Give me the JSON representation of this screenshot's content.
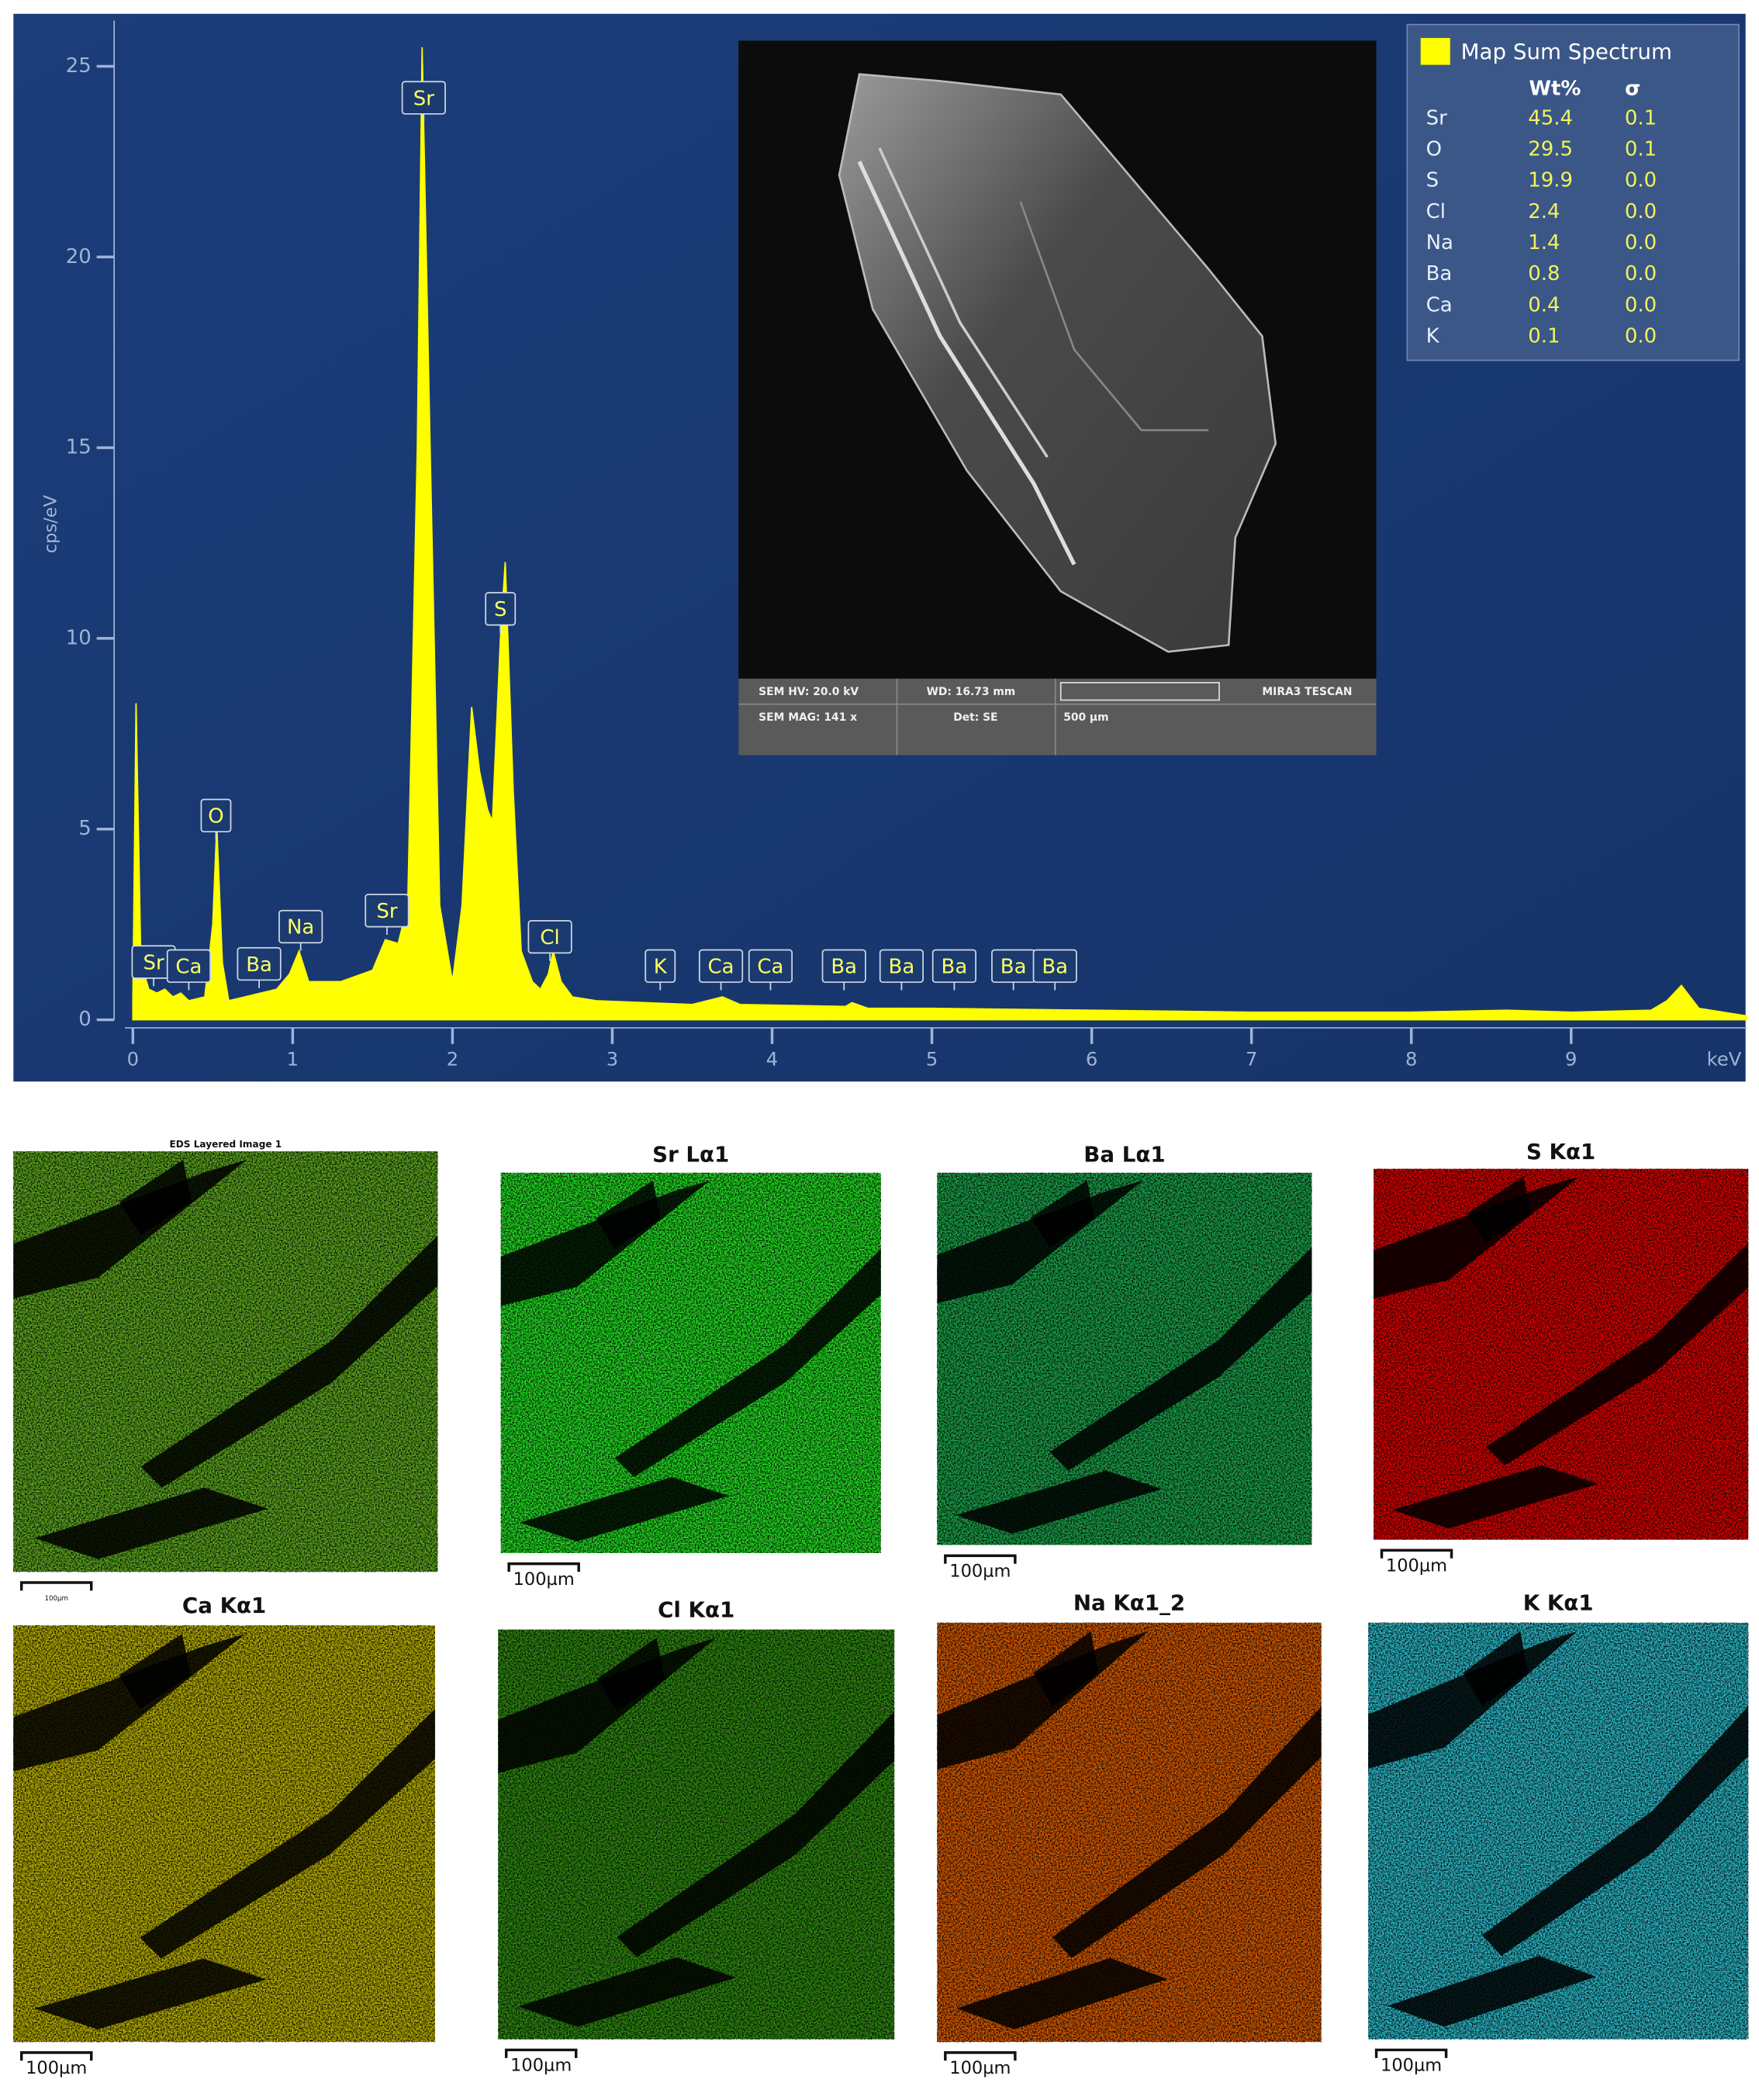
{
  "chart_data": {
    "type": "area",
    "x": [
      0.0,
      0.02,
      0.05,
      0.1,
      0.15,
      0.2,
      0.25,
      0.3,
      0.35,
      0.45,
      0.5,
      0.525,
      0.56,
      0.6,
      0.7,
      0.8,
      0.9,
      0.98,
      1.04,
      1.1,
      1.3,
      1.5,
      1.58,
      1.66,
      1.72,
      1.78,
      1.81,
      1.86,
      1.92,
      2.0,
      2.06,
      2.12,
      2.17,
      2.22,
      2.25,
      2.3,
      2.33,
      2.38,
      2.43,
      2.5,
      2.55,
      2.6,
      2.63,
      2.68,
      2.75,
      2.9,
      3.5,
      3.69,
      3.8,
      4.46,
      4.5,
      4.6,
      5,
      6,
      7,
      8,
      8.6,
      9,
      9.5,
      9.6,
      9.69,
      9.8,
      10.1
    ],
    "series": [
      {
        "name": "Map Sum Spectrum",
        "color": "#ffff00",
        "values": [
          0.5,
          8.3,
          1.5,
          0.8,
          0.7,
          0.8,
          0.6,
          0.7,
          0.5,
          0.6,
          2.5,
          5.1,
          1.5,
          0.5,
          0.6,
          0.7,
          0.8,
          1.2,
          1.8,
          1.0,
          1.0,
          1.3,
          2.1,
          2.0,
          3,
          15,
          25.5,
          15,
          3,
          1.0,
          3,
          8.2,
          6.5,
          5.5,
          5.2,
          10,
          12,
          6,
          1.8,
          1.0,
          0.8,
          1.2,
          1.8,
          1.0,
          0.6,
          0.5,
          0.4,
          0.6,
          0.4,
          0.35,
          0.45,
          0.3,
          0.3,
          0.25,
          0.2,
          0.2,
          0.25,
          0.2,
          0.25,
          0.5,
          0.9,
          0.3,
          0.1
        ]
      }
    ],
    "xlim": [
      -0.05,
      10.1
    ],
    "xticks": [
      0,
      1,
      2,
      3,
      4,
      5,
      6,
      7,
      8,
      9
    ],
    "xlabel": "keV",
    "ylim": [
      0,
      26.2
    ],
    "yticks": [
      0,
      5,
      10,
      15,
      20,
      25
    ],
    "ylabel": "cps/eV",
    "peak_labels": [
      {
        "label": "Sr",
        "x": 0.13
      },
      {
        "label": "Ca",
        "x": 0.35
      },
      {
        "label": "O",
        "x": 0.52
      },
      {
        "label": "Ba",
        "x": 0.79
      },
      {
        "label": "Na",
        "x": 1.05
      },
      {
        "label": "Sr",
        "x": 1.59
      },
      {
        "label": "Sr",
        "x": 1.82
      },
      {
        "label": "S",
        "x": 2.3
      },
      {
        "label": "Cl",
        "x": 2.61
      },
      {
        "label": "K",
        "x": 3.3
      },
      {
        "label": "Ca",
        "x": 3.68
      },
      {
        "label": "Ca",
        "x": 3.99
      },
      {
        "label": "Ba",
        "x": 4.45
      },
      {
        "label": "Ba",
        "x": 4.81
      },
      {
        "label": "Ba",
        "x": 5.14
      },
      {
        "label": "Ba",
        "x": 5.51
      },
      {
        "label": "Ba",
        "x": 5.77
      }
    ]
  },
  "table": {
    "header": [
      "Wt%",
      "σ"
    ],
    "rows": [
      [
        "Sr",
        "45.4",
        "0.1"
      ],
      [
        "O",
        "29.5",
        "0.1"
      ],
      [
        "S",
        "19.9",
        "0.0"
      ],
      [
        "Cl",
        "2.4",
        "0.0"
      ],
      [
        "Na",
        "1.4",
        "0.0"
      ],
      [
        "Ba",
        "0.8",
        "0.0"
      ],
      [
        "Ca",
        "0.4",
        "0.0"
      ],
      [
        "K",
        "0.1",
        "0.0"
      ]
    ]
  },
  "sem_image": {
    "info": [
      "SEM HV: 20.0 kV",
      "WD: 16.73 mm",
      "MIRA3 TESCAN",
      "SEM MAG: 141 x",
      "Det: SE",
      "500 µm"
    ]
  },
  "maps": [
    {
      "title": "EDS Layered Image 1",
      "color": "#5da81e",
      "scale": "100µm"
    },
    {
      "title": "Sr Lα1",
      "color": "#22dd22",
      "scale": "100µm"
    },
    {
      "title": "Ba Lα1",
      "color": "#1aa24a",
      "scale": "100µm"
    },
    {
      "title": "S Kα1",
      "color": "#e00000",
      "scale": "100µm"
    },
    {
      "title": "Ca Kα1",
      "color": "#b8b000",
      "scale": "100µm"
    },
    {
      "title": "Cl Kα1",
      "color": "#2f8a10",
      "scale": "100µm"
    },
    {
      "title": "Na Kα1_2",
      "color": "#d85a00",
      "scale": "100µm"
    },
    {
      "title": "K Kα1",
      "color": "#2ab8c8",
      "scale": "100µm"
    }
  ]
}
